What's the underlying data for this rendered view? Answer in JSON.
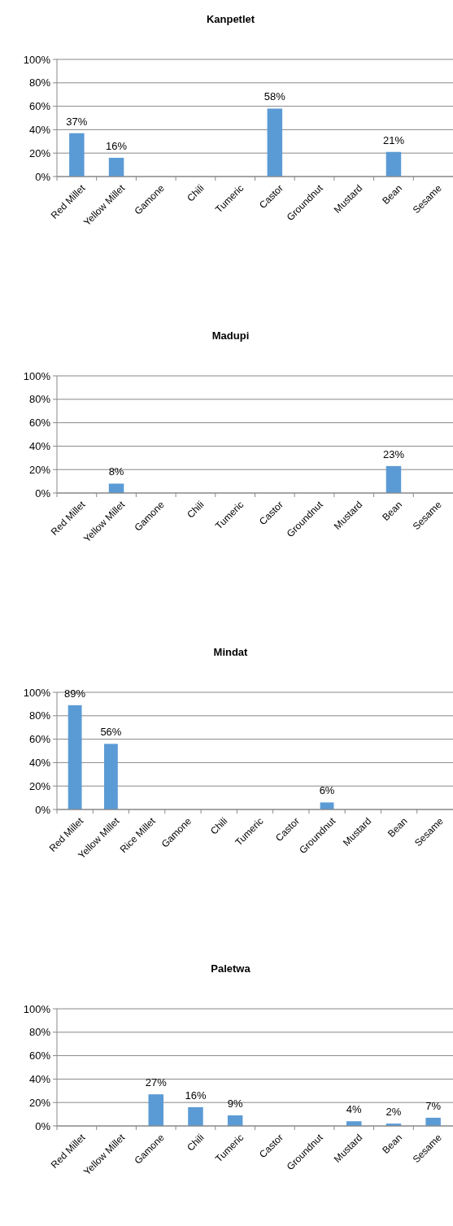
{
  "chart_data": [
    {
      "type": "bar",
      "title": "Kanpetlet",
      "categories": [
        "Red Millet",
        "Yellow Millet",
        "Gamone",
        "Chili",
        "Tumeric",
        "Castor",
        "Groundnut",
        "Mustard",
        "Bean",
        "Sesame"
      ],
      "values": [
        37,
        16,
        0,
        0,
        0,
        58,
        0,
        0,
        21,
        0
      ],
      "value_labels": [
        "37%",
        "16%",
        null,
        null,
        null,
        "58%",
        null,
        null,
        "21%",
        null
      ],
      "color": "#5b9bd5",
      "ylim": [
        0,
        100
      ],
      "yticks": [
        {
          "value": 0,
          "label": "0%"
        },
        {
          "value": 20,
          "label": "20%"
        },
        {
          "value": 40,
          "label": "40%"
        },
        {
          "value": 60,
          "label": "60%"
        },
        {
          "value": 80,
          "label": "80%"
        },
        {
          "value": 100,
          "label": "100%"
        }
      ],
      "grid": "y"
    },
    {
      "type": "bar",
      "title": "Madupi",
      "categories": [
        "Red Millet",
        "Yellow Millet",
        "Gamone",
        "Chili",
        "Tumeric",
        "Castor",
        "Groundnut",
        "Mustard",
        "Bean",
        "Sesame"
      ],
      "values": [
        0,
        8,
        0,
        0,
        0,
        0,
        0,
        0,
        23,
        0
      ],
      "value_labels": [
        null,
        "8%",
        null,
        null,
        null,
        null,
        null,
        null,
        "23%",
        null
      ],
      "color": "#5b9bd5",
      "ylim": [
        0,
        100
      ],
      "yticks": [
        {
          "value": 0,
          "label": "0%"
        },
        {
          "value": 20,
          "label": "20%"
        },
        {
          "value": 40,
          "label": "40%"
        },
        {
          "value": 60,
          "label": "60%"
        },
        {
          "value": 80,
          "label": "80%"
        },
        {
          "value": 100,
          "label": "100%"
        }
      ],
      "grid": "y"
    },
    {
      "type": "bar",
      "title": "Mindat",
      "categories": [
        "Red Millet",
        "Yellow Millet",
        "Rice Millet",
        "Gamone",
        "Chili",
        "Tumeric",
        "Castor",
        "Groundnut",
        "Mustard",
        "Bean",
        "Sesame"
      ],
      "values": [
        89,
        56,
        0,
        0,
        0,
        0,
        0,
        6,
        0,
        0,
        0
      ],
      "value_labels": [
        "89%",
        "56%",
        null,
        null,
        null,
        null,
        null,
        "6%",
        null,
        null,
        null
      ],
      "color": "#5b9bd5",
      "ylim": [
        0,
        100
      ],
      "yticks": [
        {
          "value": 0,
          "label": "0%"
        },
        {
          "value": 20,
          "label": "20%"
        },
        {
          "value": 40,
          "label": "40%"
        },
        {
          "value": 60,
          "label": "60%"
        },
        {
          "value": 80,
          "label": "80%"
        },
        {
          "value": 100,
          "label": "100%"
        }
      ],
      "grid": "y"
    },
    {
      "type": "bar",
      "title": "Paletwa",
      "categories": [
        "Red Millet",
        "Yellow Millet",
        "Gamone",
        "Chili",
        "Tumeric",
        "Castor",
        "Groundnut",
        "Mustard",
        "Bean",
        "Sesame"
      ],
      "values": [
        0,
        0,
        27,
        16,
        9,
        0,
        0,
        4,
        2,
        7
      ],
      "value_labels": [
        null,
        null,
        "27%",
        "16%",
        "9%",
        null,
        null,
        "4%",
        "2%",
        "7%"
      ],
      "color": "#5b9bd5",
      "ylim": [
        0,
        100
      ],
      "yticks": [
        {
          "value": 0,
          "label": "0%"
        },
        {
          "value": 20,
          "label": "20%"
        },
        {
          "value": 40,
          "label": "40%"
        },
        {
          "value": 60,
          "label": "60%"
        },
        {
          "value": 80,
          "label": "80%"
        },
        {
          "value": 100,
          "label": "100%"
        }
      ],
      "grid": "y"
    }
  ]
}
